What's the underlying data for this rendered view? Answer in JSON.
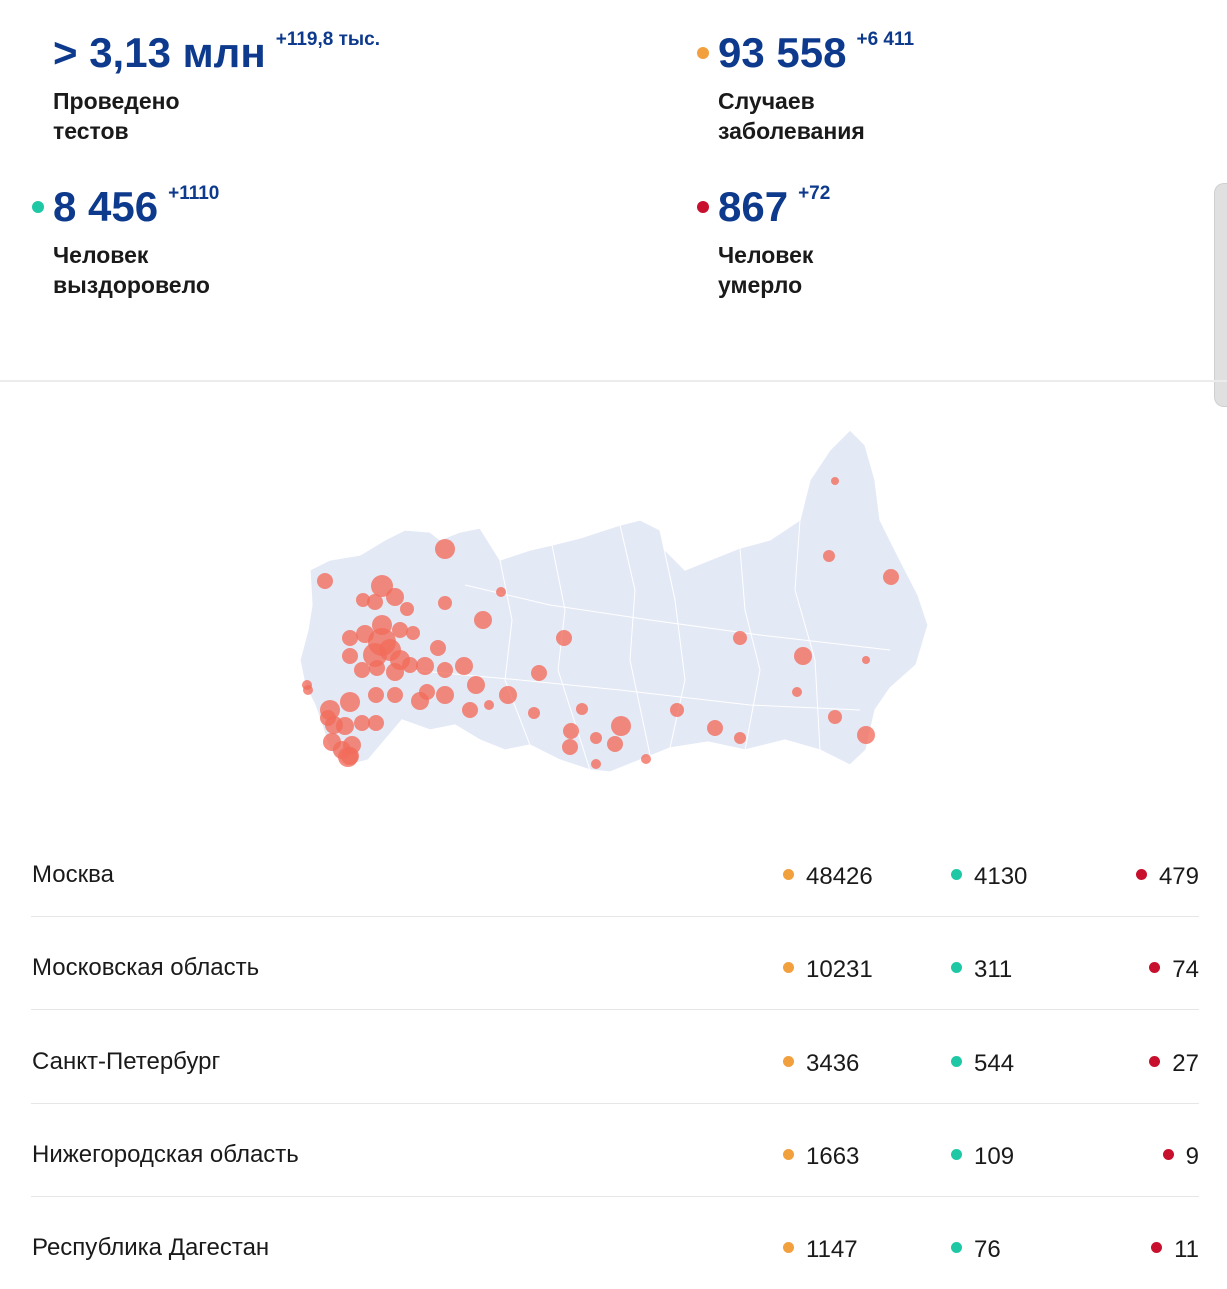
{
  "colors": {
    "cases": "#f2a03d",
    "recovered": "#1ec8a5",
    "deaths": "#c8102e",
    "primary": "#0d3a8c",
    "map_fill": "#e4e9f6",
    "map_marker": "#f26b5b"
  },
  "stats": {
    "tests": {
      "value": "> 3,13 млн",
      "delta": "+119,8 тыс.",
      "label_line1": "Проведено",
      "label_line2": "тестов"
    },
    "cases": {
      "value": "93 558",
      "delta": "+6 411",
      "label_line1": "Случаев",
      "label_line2": "заболевания"
    },
    "recovered": {
      "value": "8 456",
      "delta": "+1110",
      "label_line1": "Человек",
      "label_line2": "выздоровело"
    },
    "deaths": {
      "value": "867",
      "delta": "+72",
      "label_line1": "Человек",
      "label_line2": "умерло"
    }
  },
  "map": {
    "name": "russia-map",
    "marker_count": 70
  },
  "regions": [
    {
      "name": "Москва",
      "cases": "48426",
      "recovered": "4130",
      "deaths": "479"
    },
    {
      "name": "Московская область",
      "cases": "10231",
      "recovered": "311",
      "deaths": "74"
    },
    {
      "name": "Санкт-Петербург",
      "cases": "3436",
      "recovered": "544",
      "deaths": "27"
    },
    {
      "name": "Нижегородская область",
      "cases": "1663",
      "recovered": "109",
      "deaths": "9"
    },
    {
      "name": "Республика Дагестан",
      "cases": "1147",
      "recovered": "76",
      "deaths": "11"
    }
  ]
}
